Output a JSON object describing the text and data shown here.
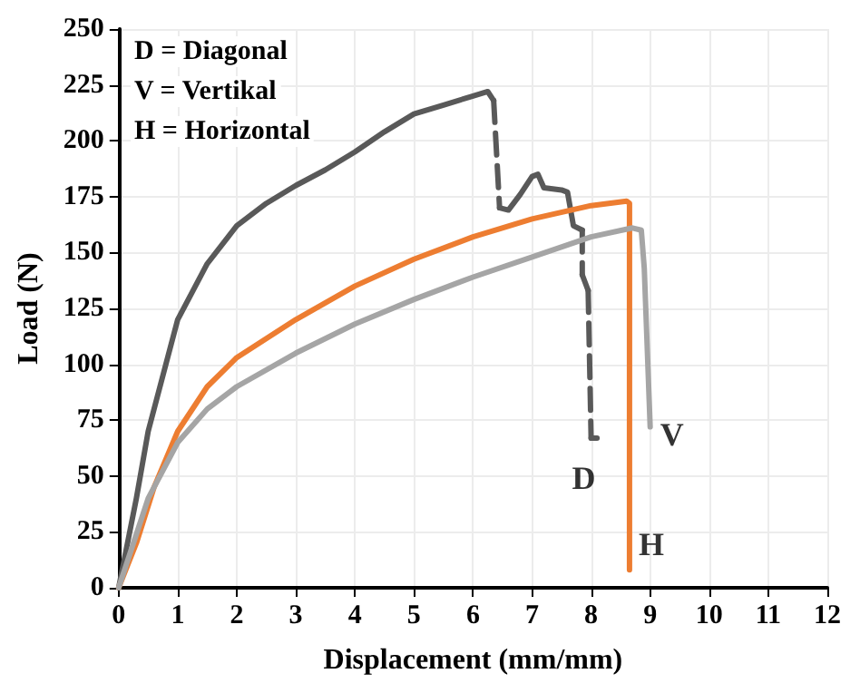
{
  "chart_data": {
    "type": "line",
    "xlabel": "Displacement (mm/mm)",
    "ylabel": "Load (N)",
    "xlim": [
      0,
      12
    ],
    "xticks": [
      0,
      1,
      2,
      3,
      4,
      5,
      6,
      7,
      8,
      9,
      10,
      11,
      12
    ],
    "ylim": [
      0,
      250
    ],
    "yticks": [
      0,
      25,
      50,
      75,
      100,
      125,
      150,
      175,
      200,
      225,
      250
    ],
    "grid": true,
    "marker": "none",
    "series": [
      {
        "color": "#595959",
        "line_style": "solid",
        "x": [
          0,
          0.3,
          0.5,
          0.8,
          1,
          1.5,
          2,
          2.5,
          3,
          3.5,
          4,
          4.5,
          5,
          5.5,
          6,
          6.25,
          6.35
        ],
        "values": [
          0,
          40,
          70,
          100,
          120,
          145,
          162,
          172,
          180,
          187,
          195,
          204,
          212,
          216,
          220,
          222,
          218
        ]
      },
      {
        "color": "#595959",
        "line_style": "dashed",
        "x": [
          6.35,
          6.45
        ],
        "values": [
          218,
          170
        ]
      },
      {
        "color": "#595959",
        "line_style": "solid",
        "x": [
          6.45,
          6.6,
          6.8,
          7,
          7.1,
          7.2,
          7.5,
          7.6,
          7.7,
          7.85
        ],
        "values": [
          170,
          169,
          176,
          184,
          185,
          179,
          178,
          177,
          162,
          160
        ]
      },
      {
        "color": "#595959",
        "line_style": "dashed",
        "x": [
          7.85,
          7.85
        ],
        "values": [
          160,
          140
        ]
      },
      {
        "color": "#595959",
        "line_style": "solid",
        "x": [
          7.85,
          7.95
        ],
        "values": [
          140,
          133
        ]
      },
      {
        "color": "#595959",
        "line_style": "dashed",
        "x": [
          7.95,
          8
        ],
        "values": [
          133,
          67
        ]
      },
      {
        "color": "#595959",
        "line_style": "solid",
        "x": [
          8,
          8.1
        ],
        "values": [
          67,
          67
        ]
      },
      {
        "color": "#ed7d31",
        "line_style": "solid",
        "x": [
          0,
          0.3,
          0.6,
          1,
          1.5,
          2,
          3,
          4,
          5,
          6,
          7,
          8,
          8.6,
          8.65,
          8.65
        ],
        "values": [
          0,
          20,
          45,
          70,
          90,
          103,
          120,
          135,
          147,
          157,
          165,
          171,
          173,
          172,
          8
        ]
      },
      {
        "color": "#a5a5a5",
        "line_style": "solid",
        "x": [
          0,
          0.5,
          1,
          1.5,
          2,
          3,
          4,
          5,
          6,
          7,
          8,
          8.7,
          8.85,
          8.9,
          9
        ],
        "values": [
          0,
          40,
          65,
          80,
          90,
          105,
          118,
          129,
          139,
          148,
          157,
          161,
          160,
          143,
          72
        ]
      }
    ],
    "annotations": [
      "D = Diagonal",
      "V = Vertikal",
      "H = Horizontal",
      {
        "text": "D",
        "x": 8,
        "y": 67
      },
      {
        "text": "V",
        "x": 9,
        "y": 72
      },
      {
        "text": "H",
        "x": 8.65,
        "y": 8
      }
    ]
  }
}
